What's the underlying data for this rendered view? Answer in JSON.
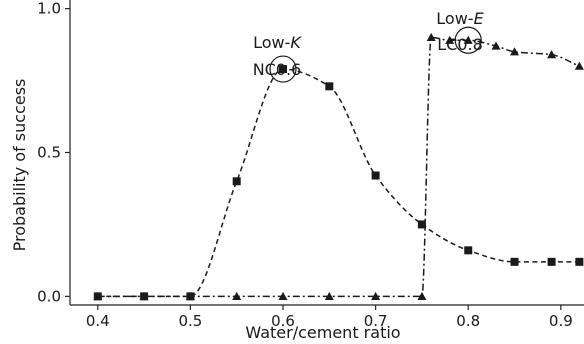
{
  "chart_data": {
    "type": "line",
    "xlabel": "Water/cement ratio",
    "ylabel": "Probability of success",
    "xlim": [
      0.37,
      0.925
    ],
    "ylim": [
      -0.03,
      1.03
    ],
    "xticks": [
      "0.4",
      "0.5",
      "0.6",
      "0.7",
      "0.8",
      "0.9"
    ],
    "yticks": [
      "0.0",
      "0.5",
      "1.0"
    ],
    "grid": false,
    "series": [
      {
        "marker": "square",
        "line_style": "dashed",
        "points": [
          {
            "x": 0.4,
            "y": 0.0
          },
          {
            "x": 0.45,
            "y": 0.0
          },
          {
            "x": 0.5,
            "y": 0.0
          },
          {
            "x": 0.55,
            "y": 0.4
          },
          {
            "x": 0.6,
            "y": 0.79
          },
          {
            "x": 0.65,
            "y": 0.73
          },
          {
            "x": 0.7,
            "y": 0.42
          },
          {
            "x": 0.75,
            "y": 0.25
          },
          {
            "x": 0.8,
            "y": 0.16
          },
          {
            "x": 0.85,
            "y": 0.12
          },
          {
            "x": 0.89,
            "y": 0.12
          },
          {
            "x": 0.92,
            "y": 0.12
          }
        ]
      },
      {
        "marker": "triangle",
        "line_style": "dashdot",
        "points": [
          {
            "x": 0.4,
            "y": 0.0
          },
          {
            "x": 0.45,
            "y": 0.0
          },
          {
            "x": 0.5,
            "y": 0.0
          },
          {
            "x": 0.55,
            "y": 0.0
          },
          {
            "x": 0.6,
            "y": 0.0
          },
          {
            "x": 0.65,
            "y": 0.0
          },
          {
            "x": 0.7,
            "y": 0.0
          },
          {
            "x": 0.75,
            "y": 0.0
          },
          {
            "x": 0.76,
            "y": 0.9
          },
          {
            "x": 0.78,
            "y": 0.89
          },
          {
            "x": 0.8,
            "y": 0.89
          },
          {
            "x": 0.83,
            "y": 0.87
          },
          {
            "x": 0.85,
            "y": 0.85
          },
          {
            "x": 0.89,
            "y": 0.84
          },
          {
            "x": 0.92,
            "y": 0.8
          }
        ]
      }
    ],
    "annotations": [
      {
        "line1_prefix": "Low-",
        "line1_italic": "K",
        "line2": "NC0.6",
        "x": 0.6,
        "y": 0.79
      },
      {
        "line1_prefix": "Low-",
        "line1_italic": "E",
        "line2": "LC0.8",
        "x": 0.8,
        "y": 0.89
      }
    ]
  }
}
